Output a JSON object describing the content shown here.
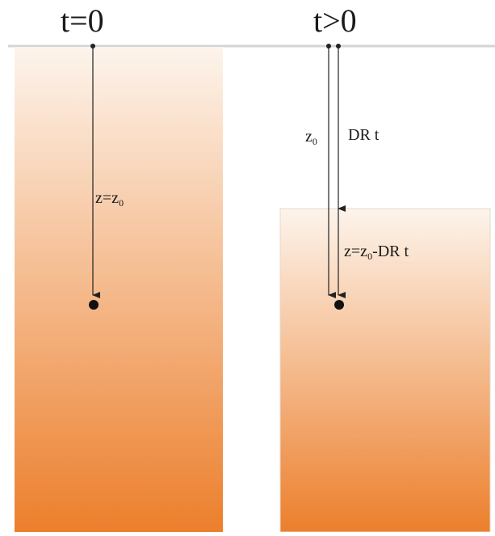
{
  "panels": {
    "left": {
      "title": "t=0",
      "depth_label": {
        "var": "z",
        "eq": "=",
        "symbol": "z",
        "sub": "0"
      }
    },
    "right": {
      "title": "t>0",
      "z0_label": {
        "symbol": "z",
        "sub": "0"
      },
      "erosion_label": "DR t",
      "depth_label": {
        "var": "z",
        "eq": "=",
        "symbol": "z",
        "sub": "0",
        "rest": "-DR t"
      }
    }
  },
  "colors": {
    "column_top": "#fdf4ec",
    "column_bottom": "#ec7f2c",
    "surface_line": "#d4d4d4",
    "arrow": "#222222"
  }
}
